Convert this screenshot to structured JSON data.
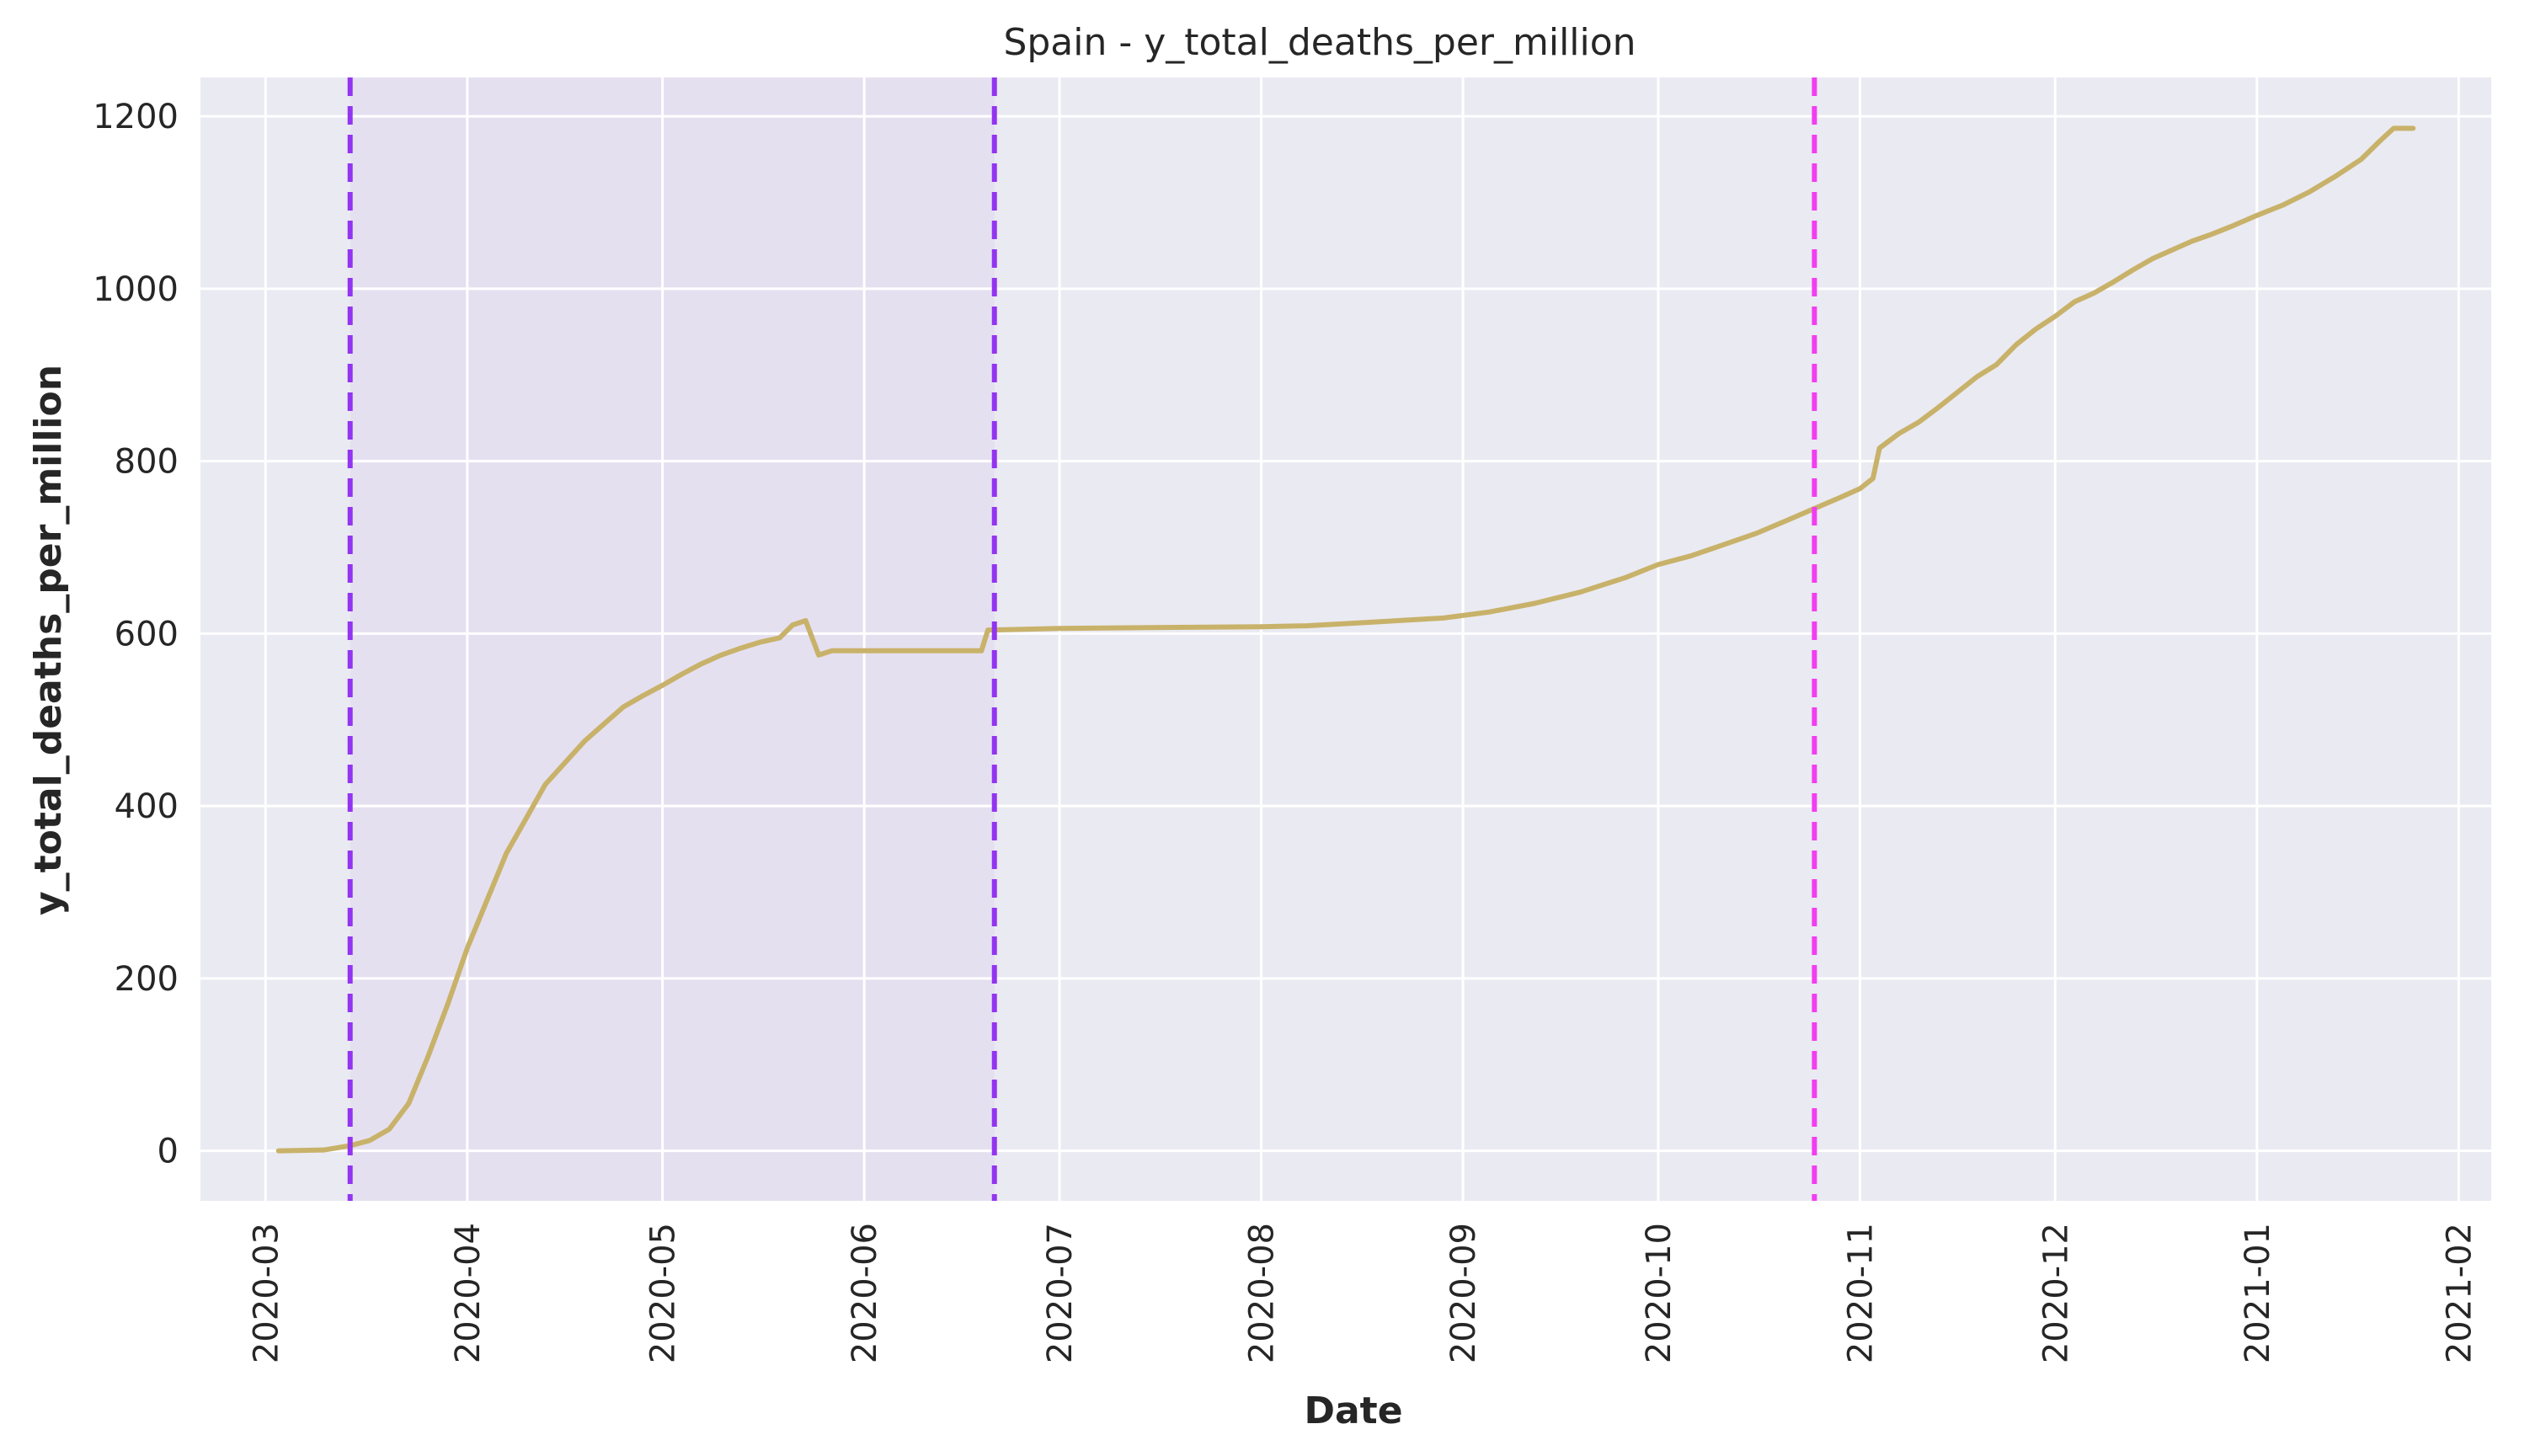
{
  "chart_data": {
    "type": "line",
    "title": "Spain - y_total_deaths_per_million",
    "xlabel": "Date",
    "ylabel": "y_total_deaths_per_million",
    "grid": true,
    "legend": "none",
    "xlim": [
      "2020-02-20",
      "2021-02-06"
    ],
    "ylim": [
      -58,
      1245
    ],
    "x_ticks": [
      "2020-03",
      "2020-04",
      "2020-05",
      "2020-06",
      "2020-07",
      "2020-08",
      "2020-09",
      "2020-10",
      "2020-11",
      "2020-12",
      "2021-01",
      "2021-02"
    ],
    "y_ticks": [
      0,
      200,
      400,
      600,
      800,
      1000,
      1200
    ],
    "colors": {
      "line": "#c8b26a",
      "plot_background": "#eaeaf2",
      "shaded_region": "#e5e0f0",
      "grid": "#ffffff",
      "vline_purple": "#9234f0",
      "vline_magenta": "#f23ef0"
    },
    "shaded_region": {
      "start": "2020-03-14",
      "end": "2020-06-21"
    },
    "vertical_lines": [
      {
        "date": "2020-03-14",
        "color": "#9234f0"
      },
      {
        "date": "2020-06-21",
        "color": "#9234f0"
      },
      {
        "date": "2020-10-25",
        "color": "#f23ef0"
      }
    ],
    "series": [
      {
        "points": [
          [
            "2020-03-03",
            0
          ],
          [
            "2020-03-10",
            1
          ],
          [
            "2020-03-14",
            6
          ],
          [
            "2020-03-17",
            12
          ],
          [
            "2020-03-20",
            25
          ],
          [
            "2020-03-23",
            55
          ],
          [
            "2020-03-26",
            110
          ],
          [
            "2020-03-29",
            170
          ],
          [
            "2020-04-01",
            235
          ],
          [
            "2020-04-04",
            290
          ],
          [
            "2020-04-07",
            345
          ],
          [
            "2020-04-10",
            385
          ],
          [
            "2020-04-13",
            425
          ],
          [
            "2020-04-16",
            450
          ],
          [
            "2020-04-19",
            475
          ],
          [
            "2020-04-22",
            495
          ],
          [
            "2020-04-25",
            515
          ],
          [
            "2020-04-28",
            528
          ],
          [
            "2020-05-01",
            540
          ],
          [
            "2020-05-04",
            553
          ],
          [
            "2020-05-07",
            565
          ],
          [
            "2020-05-10",
            575
          ],
          [
            "2020-05-13",
            583
          ],
          [
            "2020-05-16",
            590
          ],
          [
            "2020-05-19",
            595
          ],
          [
            "2020-05-21",
            610
          ],
          [
            "2020-05-23",
            615
          ],
          [
            "2020-05-25",
            575
          ],
          [
            "2020-05-27",
            580
          ],
          [
            "2020-06-05",
            580
          ],
          [
            "2020-06-15",
            580
          ],
          [
            "2020-06-19",
            580
          ],
          [
            "2020-06-20",
            604
          ],
          [
            "2020-07-01",
            606
          ],
          [
            "2020-07-15",
            607
          ],
          [
            "2020-08-01",
            608
          ],
          [
            "2020-08-08",
            609
          ],
          [
            "2020-08-15",
            612
          ],
          [
            "2020-08-22",
            615
          ],
          [
            "2020-08-29",
            618
          ],
          [
            "2020-09-05",
            625
          ],
          [
            "2020-09-12",
            635
          ],
          [
            "2020-09-19",
            648
          ],
          [
            "2020-09-26",
            665
          ],
          [
            "2020-10-01",
            680
          ],
          [
            "2020-10-06",
            690
          ],
          [
            "2020-10-11",
            703
          ],
          [
            "2020-10-16",
            716
          ],
          [
            "2020-10-21",
            732
          ],
          [
            "2020-10-25",
            745
          ],
          [
            "2020-10-29",
            758
          ],
          [
            "2020-11-01",
            768
          ],
          [
            "2020-11-03",
            780
          ],
          [
            "2020-11-04",
            815
          ],
          [
            "2020-11-07",
            832
          ],
          [
            "2020-11-10",
            845
          ],
          [
            "2020-11-13",
            862
          ],
          [
            "2020-11-16",
            880
          ],
          [
            "2020-11-19",
            898
          ],
          [
            "2020-11-22",
            912
          ],
          [
            "2020-11-25",
            935
          ],
          [
            "2020-11-28",
            953
          ],
          [
            "2020-12-01",
            968
          ],
          [
            "2020-12-04",
            985
          ],
          [
            "2020-12-07",
            995
          ],
          [
            "2020-12-10",
            1008
          ],
          [
            "2020-12-13",
            1022
          ],
          [
            "2020-12-16",
            1035
          ],
          [
            "2020-12-19",
            1045
          ],
          [
            "2020-12-22",
            1055
          ],
          [
            "2020-12-25",
            1063
          ],
          [
            "2020-12-28",
            1072
          ],
          [
            "2021-01-01",
            1085
          ],
          [
            "2021-01-05",
            1097
          ],
          [
            "2021-01-09",
            1112
          ],
          [
            "2021-01-13",
            1130
          ],
          [
            "2021-01-17",
            1150
          ],
          [
            "2021-01-20",
            1172
          ],
          [
            "2021-01-22",
            1186
          ],
          [
            "2021-01-25",
            1186
          ]
        ]
      }
    ]
  }
}
